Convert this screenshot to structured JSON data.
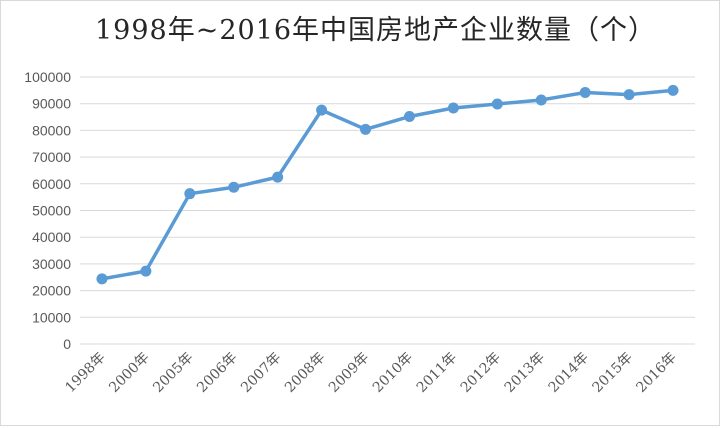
{
  "chart_data": {
    "type": "line",
    "title": "1998年~2016年中国房地产企业数量（个）",
    "xlabel": "",
    "ylabel": "",
    "categories": [
      "1998年",
      "2000年",
      "2005年",
      "2006年",
      "2007年",
      "2008年",
      "2009年",
      "2010年",
      "2011年",
      "2012年",
      "2013年",
      "2014年",
      "2015年",
      "2016年"
    ],
    "series": [
      {
        "values": [
          24400,
          27300,
          56300,
          58700,
          62500,
          87600,
          80400,
          85200,
          88400,
          89900,
          91400,
          94200,
          93400,
          95000
        ]
      }
    ],
    "ylim": [
      0,
      100000
    ],
    "yticks": [
      0,
      10000,
      20000,
      30000,
      40000,
      50000,
      60000,
      70000,
      80000,
      90000,
      100000
    ],
    "grid": true,
    "legend": "none",
    "line_color": "#5b9bd5",
    "grid_color": "#d9d9d9"
  }
}
